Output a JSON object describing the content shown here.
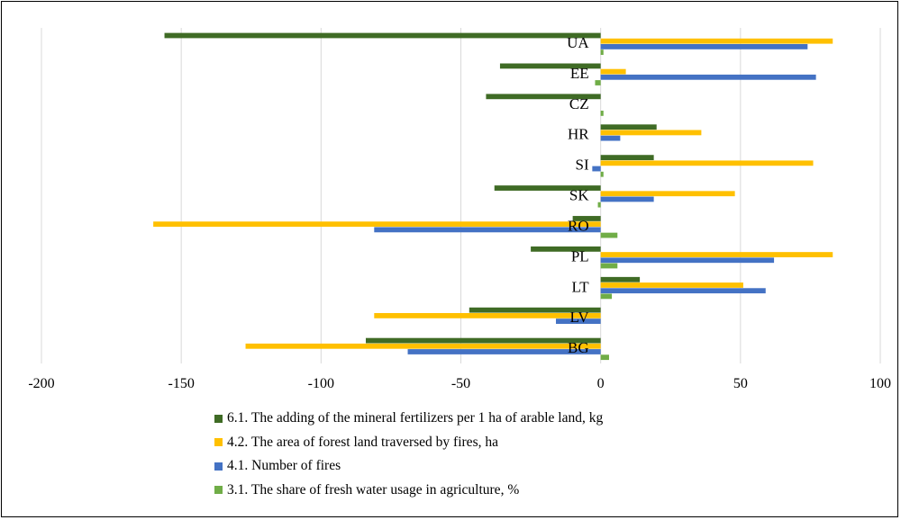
{
  "chart_data": {
    "type": "bar",
    "orientation": "horizontal",
    "categories": [
      "UA",
      "EE",
      "CZ",
      "HR",
      "SI",
      "SK",
      "RO",
      "PL",
      "LT",
      "LV",
      "BG"
    ],
    "series": [
      {
        "name": "6.1. The adding of the mineral fertilizers per 1 ha of arable land, kg",
        "color": "#3f6b25",
        "values": [
          -156,
          -36,
          -41,
          20,
          19,
          -38,
          -10,
          -25,
          14,
          -47,
          -84
        ]
      },
      {
        "name": "4.2. The area of forest land traversed by fires, ha",
        "color": "#ffc000",
        "values": [
          83,
          9,
          0,
          36,
          76,
          48,
          -160,
          83,
          51,
          -81,
          -127
        ]
      },
      {
        "name": "4.1. Number of fires",
        "color": "#4472c4",
        "values": [
          74,
          77,
          0,
          7,
          -3,
          19,
          -81,
          62,
          59,
          -16,
          -69
        ]
      },
      {
        "name": "3.1. The share of fresh water usage in agriculture, %",
        "color": "#70ad47",
        "values": [
          1,
          -2,
          1,
          0,
          1,
          -1,
          6,
          6,
          4,
          0,
          3
        ]
      }
    ],
    "xlim": [
      -200,
      100
    ],
    "xticks": [
      "-200",
      "-150",
      "-100",
      "-50",
      "0",
      "50",
      "100"
    ],
    "grid": true,
    "legend_position": "bottom"
  }
}
